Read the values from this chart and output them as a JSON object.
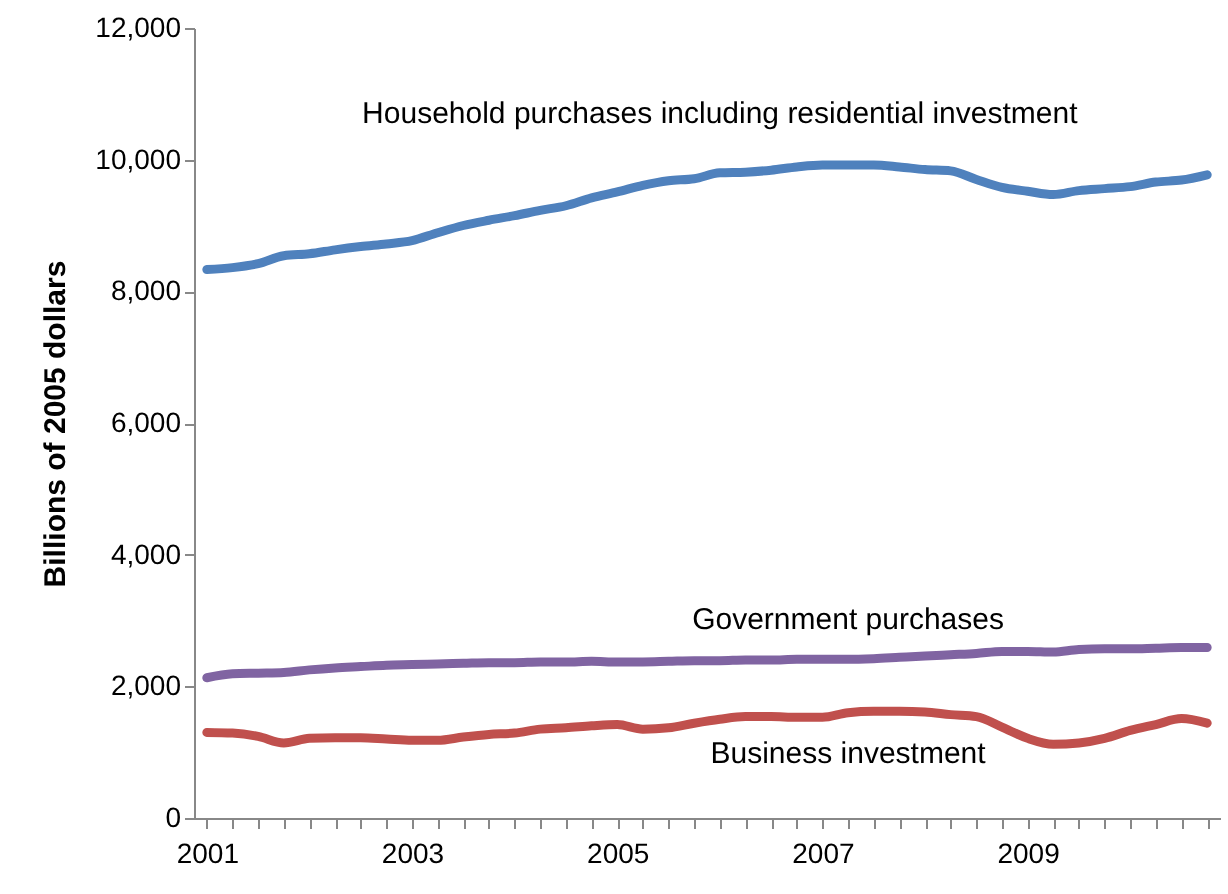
{
  "chart_data": {
    "type": "line",
    "ylabel": "Billions of 2005 dollars",
    "categories": [
      "2001",
      null,
      null,
      null,
      null,
      null,
      null,
      null,
      "2003",
      null,
      null,
      null,
      null,
      null,
      null,
      null,
      "2005",
      null,
      null,
      null,
      null,
      null,
      null,
      null,
      "2007",
      null,
      null,
      null,
      null,
      null,
      null,
      null,
      "2009",
      null,
      null,
      null,
      null,
      null,
      null,
      null
    ],
    "ylim": [
      0,
      12000
    ],
    "yticks": [
      0,
      {
        "value": 2000,
        "label": "2,000"
      },
      {
        "value": 4000,
        "label": "4,000"
      },
      {
        "value": 6000,
        "label": "6,000"
      },
      {
        "value": 8000,
        "label": "8,000"
      },
      {
        "value": 10000,
        "label": "10,000"
      },
      {
        "value": 12000,
        "label": "12,000"
      }
    ],
    "series": [
      {
        "name": "Household purchases including residential investment",
        "color": "#4f81bd",
        "values": [
          8330,
          8360,
          8420,
          8540,
          8570,
          8630,
          8680,
          8720,
          8770,
          8890,
          9000,
          9080,
          9150,
          9230,
          9300,
          9420,
          9510,
          9610,
          9680,
          9710,
          9800,
          9810,
          9840,
          9890,
          9920,
          9920,
          9920,
          9890,
          9850,
          9830,
          9700,
          9580,
          9520,
          9470,
          9530,
          9560,
          9590,
          9660,
          9690,
          9770
        ]
      },
      {
        "name": "Government purchases",
        "color": "#8064a2",
        "values": [
          2130,
          2190,
          2200,
          2210,
          2250,
          2280,
          2300,
          2320,
          2330,
          2340,
          2350,
          2360,
          2360,
          2370,
          2370,
          2380,
          2370,
          2370,
          2380,
          2390,
          2390,
          2400,
          2400,
          2410,
          2410,
          2410,
          2420,
          2440,
          2460,
          2480,
          2500,
          2530,
          2530,
          2520,
          2560,
          2570,
          2570,
          2580,
          2590,
          2590
        ]
      },
      {
        "name": "Business investment",
        "color": "#c0504d",
        "values": [
          1300,
          1290,
          1240,
          1140,
          1210,
          1220,
          1220,
          1200,
          1180,
          1180,
          1230,
          1270,
          1290,
          1350,
          1370,
          1400,
          1420,
          1350,
          1370,
          1440,
          1500,
          1540,
          1540,
          1530,
          1530,
          1600,
          1620,
          1620,
          1610,
          1570,
          1540,
          1380,
          1210,
          1120,
          1140,
          1210,
          1330,
          1420,
          1510,
          1440
        ]
      }
    ]
  }
}
